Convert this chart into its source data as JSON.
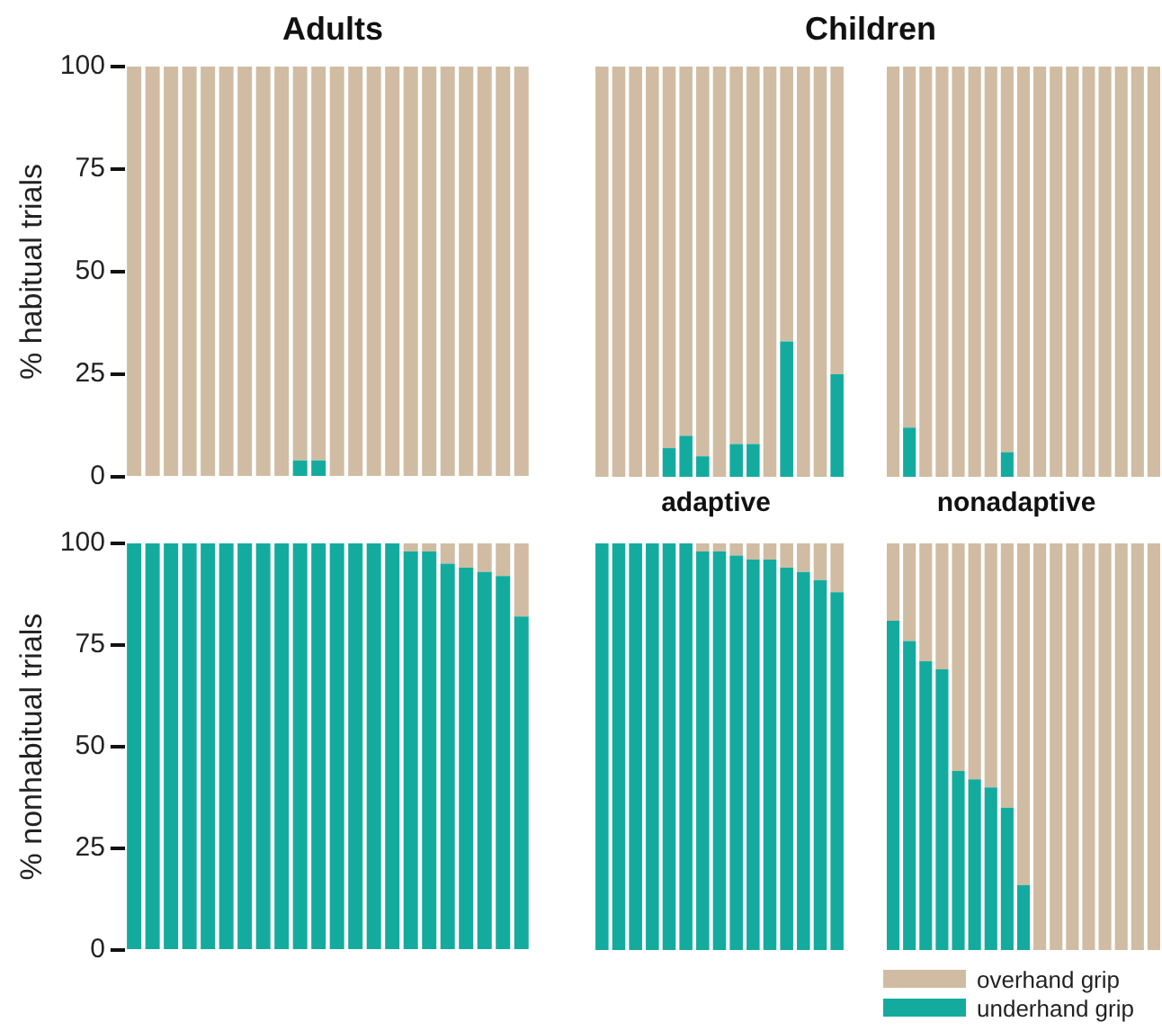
{
  "chart_data": [
    {
      "type": "bar",
      "title": "Adults",
      "ylabel": "% habitual trials",
      "stacked": true,
      "tick_labels": "y",
      "ylim": [
        0,
        100
      ],
      "yticks": [
        0,
        25,
        50,
        75,
        100
      ],
      "grid": false,
      "categories": [
        null,
        null,
        null,
        null,
        null,
        null,
        null,
        null,
        null,
        null,
        null,
        null,
        null,
        null,
        null,
        null,
        null,
        null,
        null,
        null,
        null,
        null
      ],
      "series": [
        {
          "color": "#14ab9f",
          "values": [
            0,
            0,
            0,
            0,
            0,
            0,
            0,
            0,
            0,
            4,
            4,
            0,
            0,
            0,
            0,
            0,
            0,
            0,
            0,
            0,
            0,
            0
          ]
        },
        {
          "color": "#d0bca2",
          "values": [
            100,
            100,
            100,
            100,
            100,
            100,
            100,
            100,
            100,
            96,
            96,
            100,
            100,
            100,
            100,
            100,
            100,
            100,
            100,
            100,
            100,
            100
          ]
        }
      ]
    },
    {
      "type": "bar",
      "title": "Children",
      "stacked": true,
      "tick_labels": false,
      "ylim": [
        0,
        100
      ],
      "grid": false,
      "categories": [
        null,
        null,
        null,
        null,
        null,
        null,
        null,
        null,
        null,
        null,
        null,
        null,
        null,
        null,
        null
      ],
      "series": [
        {
          "color": "#14ab9f",
          "values": [
            0,
            0,
            0,
            0,
            7,
            10,
            5,
            0,
            8,
            8,
            0,
            33,
            0,
            0,
            25
          ]
        },
        {
          "color": "#d0bca2",
          "values": [
            100,
            100,
            100,
            100,
            93,
            90,
            95,
            100,
            92,
            92,
            100,
            67,
            100,
            100,
            75
          ]
        }
      ]
    },
    {
      "type": "bar",
      "stacked": true,
      "tick_labels": false,
      "ylim": [
        0,
        100
      ],
      "grid": false,
      "categories": [
        null,
        null,
        null,
        null,
        null,
        null,
        null,
        null,
        null,
        null,
        null,
        null,
        null,
        null,
        null,
        null,
        null
      ],
      "series": [
        {
          "color": "#14ab9f",
          "values": [
            0,
            12,
            0,
            0,
            0,
            0,
            0,
            6,
            0,
            0,
            0,
            0,
            0,
            0,
            0,
            0,
            0
          ]
        },
        {
          "color": "#d0bca2",
          "values": [
            100,
            88,
            100,
            100,
            100,
            100,
            100,
            94,
            100,
            100,
            100,
            100,
            100,
            100,
            100,
            100,
            100
          ]
        }
      ]
    },
    {
      "type": "bar",
      "ylabel": "% nonhabitual trials",
      "stacked": true,
      "tick_labels": "y",
      "ylim": [
        0,
        100
      ],
      "yticks": [
        0,
        25,
        50,
        75,
        100
      ],
      "grid": false,
      "categories": [
        null,
        null,
        null,
        null,
        null,
        null,
        null,
        null,
        null,
        null,
        null,
        null,
        null,
        null,
        null,
        null,
        null,
        null,
        null,
        null,
        null,
        null
      ],
      "series": [
        {
          "color": "#14ab9f",
          "values": [
            100,
            100,
            100,
            100,
            100,
            100,
            100,
            100,
            100,
            100,
            100,
            100,
            100,
            100,
            100,
            98,
            98,
            95,
            94,
            93,
            92,
            82
          ]
        },
        {
          "color": "#d0bca2",
          "values": [
            0,
            0,
            0,
            0,
            0,
            0,
            0,
            0,
            0,
            0,
            0,
            0,
            0,
            0,
            0,
            2,
            2,
            5,
            6,
            7,
            8,
            18
          ]
        }
      ]
    },
    {
      "type": "bar",
      "title": "adaptive",
      "stacked": true,
      "tick_labels": false,
      "ylim": [
        0,
        100
      ],
      "grid": false,
      "categories": [
        null,
        null,
        null,
        null,
        null,
        null,
        null,
        null,
        null,
        null,
        null,
        null,
        null,
        null,
        null
      ],
      "series": [
        {
          "color": "#14ab9f",
          "values": [
            100,
            100,
            100,
            100,
            100,
            100,
            98,
            98,
            97,
            96,
            96,
            94,
            93,
            91,
            88
          ]
        },
        {
          "color": "#d0bca2",
          "values": [
            0,
            0,
            0,
            0,
            0,
            0,
            2,
            2,
            3,
            4,
            4,
            6,
            7,
            9,
            12
          ]
        }
      ]
    },
    {
      "type": "bar",
      "title": "nonadaptive",
      "stacked": true,
      "tick_labels": false,
      "ylim": [
        0,
        100
      ],
      "grid": false,
      "legend": "bottom",
      "categories": [
        null,
        null,
        null,
        null,
        null,
        null,
        null,
        null,
        null,
        null,
        null,
        null,
        null,
        null,
        null,
        null,
        null
      ],
      "series": [
        {
          "name": "underhand grip",
          "color": "#14ab9f",
          "values": [
            81,
            76,
            71,
            69,
            44,
            42,
            40,
            35,
            16,
            0,
            0,
            0,
            0,
            0,
            0,
            0,
            0
          ]
        },
        {
          "name": "overhand grip",
          "color": "#d0bca2",
          "values": [
            19,
            24,
            29,
            31,
            56,
            58,
            60,
            65,
            84,
            100,
            100,
            100,
            100,
            100,
            100,
            100,
            100
          ]
        }
      ]
    }
  ]
}
